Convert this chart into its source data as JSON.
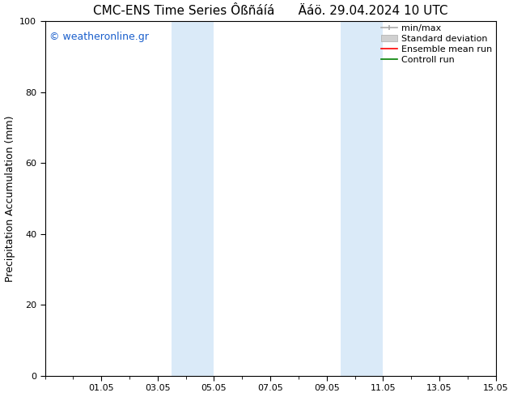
{
  "title": "CMC-ENS Time Series Ôßñáíá      Äáö. 29.04.2024 10 UTC",
  "ylabel": "Precipitation Accumulation (mm)",
  "ylim": [
    0,
    100
  ],
  "xtick_labels": [
    "01.05",
    "03.05",
    "05.05",
    "07.05",
    "09.05",
    "11.05",
    "13.05",
    "15.05"
  ],
  "xtick_positions": [
    2,
    4,
    6,
    8,
    10,
    12,
    14,
    16
  ],
  "ytick_positions": [
    0,
    20,
    40,
    60,
    80,
    100
  ],
  "shaded_regions": [
    {
      "x_start": 4.5,
      "x_end": 6.0,
      "color": "#daeaf8"
    },
    {
      "x_start": 10.5,
      "x_end": 12.0,
      "color": "#daeaf8"
    }
  ],
  "legend_items": [
    {
      "label": "min/max",
      "color": "#aaaaaa",
      "type": "errorbar"
    },
    {
      "label": "Standard deviation",
      "color": "#cccccc",
      "type": "bar"
    },
    {
      "label": "Ensemble mean run",
      "color": "red",
      "type": "line"
    },
    {
      "label": "Controll run",
      "color": "green",
      "type": "line"
    }
  ],
  "watermark_text": "© weatheronline.gr",
  "watermark_color": "#1a5fcc",
  "background_color": "#ffffff",
  "plot_bg_color": "#ffffff",
  "border_color": "#000000",
  "tick_color": "#000000",
  "label_color": "#000000",
  "title_fontsize": 11,
  "label_fontsize": 9,
  "tick_fontsize": 8,
  "legend_fontsize": 8
}
